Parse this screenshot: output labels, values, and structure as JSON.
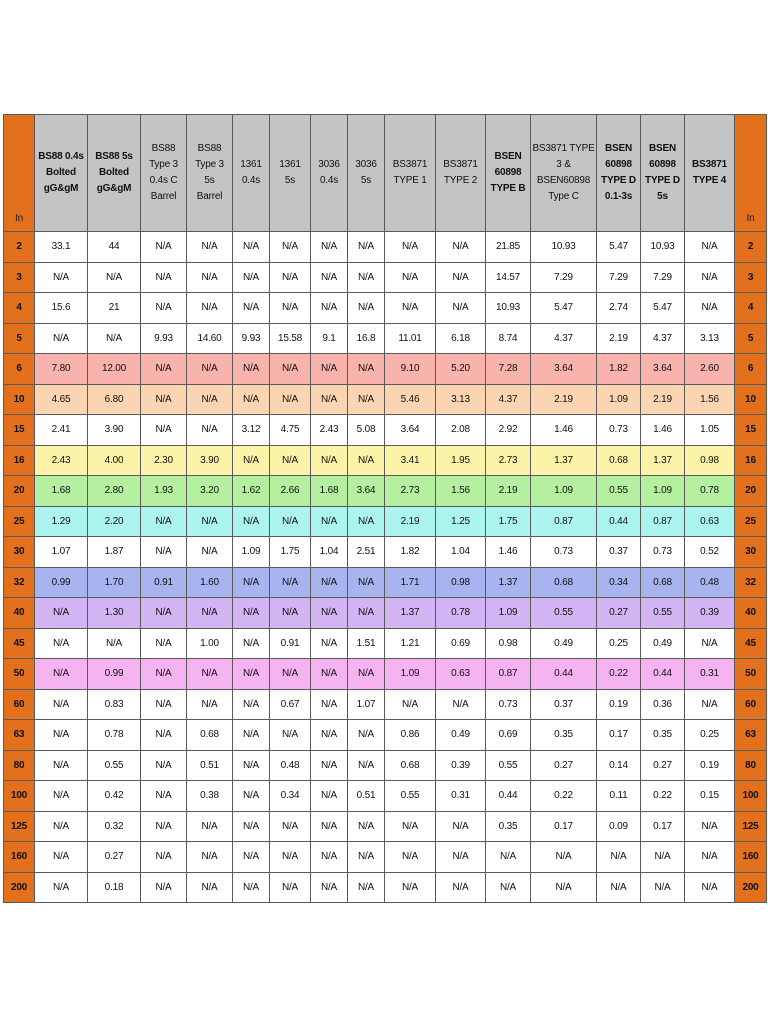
{
  "table": {
    "corner_left": "In",
    "corner_right": "In",
    "headers": [
      "BS88 0.4s\nBolted\ngG&gM",
      "BS88 5s\nBolted\ngG&gM",
      "BS88\nType 3\n0.4s C\nBarrel",
      "BS88\nType 3\n5s\nBarrel",
      "1361\n0.4s",
      "1361\n5s",
      "3036\n0.4s",
      "3036\n5s",
      "BS3871\nTYPE 1",
      "BS3871\nTYPE 2",
      "BSEN\n60898\nTYPE B",
      "BS3871 TYPE\n3 &\nBSEN60898\nType C",
      "BSEN\n60898\nTYPE D\n0.1-3s",
      "BSEN\n60898\nTYPE D\n5s",
      "BS3871\nTYPE 4"
    ],
    "rows": [
      {
        "rating": "2",
        "highlight": "#ffffff",
        "cells": [
          "33.1",
          "44",
          "N/A",
          "N/A",
          "N/A",
          "N/A",
          "N/A",
          "N/A",
          "N/A",
          "N/A",
          "21.85",
          "10.93",
          "5.47",
          "10.93",
          "N/A"
        ]
      },
      {
        "rating": "3",
        "highlight": "#ffffff",
        "cells": [
          "N/A",
          "N/A",
          "N/A",
          "N/A",
          "N/A",
          "N/A",
          "N/A",
          "N/A",
          "N/A",
          "N/A",
          "14.57",
          "7.29",
          "7.29",
          "7.29",
          "N/A"
        ]
      },
      {
        "rating": "4",
        "highlight": "#ffffff",
        "cells": [
          "15.6",
          "21",
          "N/A",
          "N/A",
          "N/A",
          "N/A",
          "N/A",
          "N/A",
          "N/A",
          "N/A",
          "10.93",
          "5.47",
          "2.74",
          "5.47",
          "N/A"
        ]
      },
      {
        "rating": "5",
        "highlight": "#ffffff",
        "cells": [
          "N/A",
          "N/A",
          "9.93",
          "14.60",
          "9.93",
          "15.58",
          "9.1",
          "16.8",
          "11.01",
          "6.18",
          "8.74",
          "4.37",
          "2.19",
          "4.37",
          "3.13"
        ]
      },
      {
        "rating": "6",
        "highlight": "#f7b3ac",
        "cells": [
          "7.80",
          "12.00",
          "N/A",
          "N/A",
          "N/A",
          "N/A",
          "N/A",
          "N/A",
          "9.10",
          "5.20",
          "7.28",
          "3.64",
          "1.82",
          "3.64",
          "2.60"
        ]
      },
      {
        "rating": "10",
        "highlight": "#fbd4b2",
        "cells": [
          "4.65",
          "6.80",
          "N/A",
          "N/A",
          "N/A",
          "N/A",
          "N/A",
          "N/A",
          "5.46",
          "3.13",
          "4.37",
          "2.19",
          "1.09",
          "2.19",
          "1.56"
        ]
      },
      {
        "rating": "15",
        "highlight": "#ffffff",
        "cells": [
          "2.41",
          "3.90",
          "N/A",
          "N/A",
          "3.12",
          "4.75",
          "2.43",
          "5.08",
          "3.64",
          "2.08",
          "2.92",
          "1.46",
          "0.73",
          "1.46",
          "1.05"
        ]
      },
      {
        "rating": "16",
        "highlight": "#fbf3a8",
        "cells": [
          "2.43",
          "4.00",
          "2.30",
          "3.90",
          "N/A",
          "N/A",
          "N/A",
          "N/A",
          "3.41",
          "1.95",
          "2.73",
          "1.37",
          "0.68",
          "1.37",
          "0.98"
        ]
      },
      {
        "rating": "20",
        "highlight": "#b5f0a0",
        "cells": [
          "1.68",
          "2.80",
          "1.93",
          "3.20",
          "1.62",
          "2.66",
          "1.68",
          "3.64",
          "2.73",
          "1.56",
          "2.19",
          "1.09",
          "0.55",
          "1.09",
          "0.78"
        ]
      },
      {
        "rating": "25",
        "highlight": "#abf5ee",
        "cells": [
          "1.29",
          "2.20",
          "N/A",
          "N/A",
          "N/A",
          "N/A",
          "N/A",
          "N/A",
          "2.19",
          "1.25",
          "1.75",
          "0.87",
          "0.44",
          "0.87",
          "0.63"
        ]
      },
      {
        "rating": "30",
        "highlight": "#ffffff",
        "cells": [
          "1.07",
          "1.87",
          "N/A",
          "N/A",
          "1.09",
          "1.75",
          "1.04",
          "2.51",
          "1.82",
          "1.04",
          "1.46",
          "0.73",
          "0.37",
          "0.73",
          "0.52"
        ]
      },
      {
        "rating": "32",
        "highlight": "#a8b4f0",
        "cells": [
          "0.99",
          "1.70",
          "0.91",
          "1.60",
          "N/A",
          "N/A",
          "N/A",
          "N/A",
          "1.71",
          "0.98",
          "1.37",
          "0.68",
          "0.34",
          "0.68",
          "0.48"
        ]
      },
      {
        "rating": "40",
        "highlight": "#d3b5f3",
        "cells": [
          "N/A",
          "1.30",
          "N/A",
          "N/A",
          "N/A",
          "N/A",
          "N/A",
          "N/A",
          "1.37",
          "0.78",
          "1.09",
          "0.55",
          "0.27",
          "0.55",
          "0.39"
        ]
      },
      {
        "rating": "45",
        "highlight": "#ffffff",
        "cells": [
          "N/A",
          "N/A",
          "N/A",
          "1.00",
          "N/A",
          "0.91",
          "N/A",
          "1.51",
          "1.21",
          "0.69",
          "0.98",
          "0.49",
          "0.25",
          "0.49",
          "N/A"
        ]
      },
      {
        "rating": "50",
        "highlight": "#f5b3f1",
        "cells": [
          "N/A",
          "0.99",
          "N/A",
          "N/A",
          "N/A",
          "N/A",
          "N/A",
          "N/A",
          "1.09",
          "0.63",
          "0.87",
          "0.44",
          "0.22",
          "0.44",
          "0.31"
        ]
      },
      {
        "rating": "60",
        "highlight": "#ffffff",
        "cells": [
          "N/A",
          "0.83",
          "N/A",
          "N/A",
          "N/A",
          "0.67",
          "N/A",
          "1.07",
          "N/A",
          "N/A",
          "0.73",
          "0.37",
          "0.19",
          "0.36",
          "N/A"
        ]
      },
      {
        "rating": "63",
        "highlight": "#ffffff",
        "cells": [
          "N/A",
          "0.78",
          "N/A",
          "0.68",
          "N/A",
          "N/A",
          "N/A",
          "N/A",
          "0.86",
          "0.49",
          "0.69",
          "0.35",
          "0.17",
          "0.35",
          "0.25"
        ]
      },
      {
        "rating": "80",
        "highlight": "#ffffff",
        "cells": [
          "N/A",
          "0.55",
          "N/A",
          "0.51",
          "N/A",
          "0.48",
          "N/A",
          "N/A",
          "0.68",
          "0.39",
          "0.55",
          "0.27",
          "0.14",
          "0.27",
          "0.19"
        ]
      },
      {
        "rating": "100",
        "highlight": "#ffffff",
        "cells": [
          "N/A",
          "0.42",
          "N/A",
          "0.38",
          "N/A",
          "0.34",
          "N/A",
          "0.51",
          "0.55",
          "0.31",
          "0.44",
          "0.22",
          "0.11",
          "0.22",
          "0.15"
        ]
      },
      {
        "rating": "125",
        "highlight": "#ffffff",
        "cells": [
          "N/A",
          "0.32",
          "N/A",
          "N/A",
          "N/A",
          "N/A",
          "N/A",
          "N/A",
          "N/A",
          "N/A",
          "0.35",
          "0.17",
          "0.09",
          "0.17",
          "N/A"
        ]
      },
      {
        "rating": "160",
        "highlight": "#ffffff",
        "cells": [
          "N/A",
          "0.27",
          "N/A",
          "N/A",
          "N/A",
          "N/A",
          "N/A",
          "N/A",
          "N/A",
          "N/A",
          "N/A",
          "N/A",
          "N/A",
          "N/A",
          "N/A"
        ]
      },
      {
        "rating": "200",
        "highlight": "#ffffff",
        "cells": [
          "N/A",
          "0.18",
          "N/A",
          "N/A",
          "N/A",
          "N/A",
          "N/A",
          "N/A",
          "N/A",
          "N/A",
          "N/A",
          "N/A",
          "N/A",
          "N/A",
          "N/A"
        ]
      }
    ],
    "colors": {
      "header_bg": "#c4c4c4",
      "rating_bg": "#e2701c"
    }
  }
}
